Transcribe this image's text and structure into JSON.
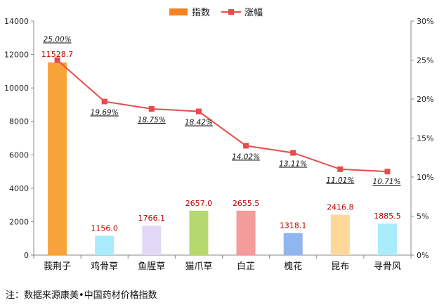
{
  "chart_data": {
    "type": "bar",
    "categories": [
      "莪荆子",
      "鸡骨草",
      "鱼腥草",
      "猫爪草",
      "白芷",
      "槐花",
      "昆布",
      "寻骨风"
    ],
    "series": [
      {
        "name": "指数",
        "type": "bar",
        "axis": "left",
        "values": [
          11528.7,
          1156.0,
          1766.1,
          2657.0,
          2655.5,
          1318.1,
          2416.8,
          1885.5
        ],
        "labels": [
          "11528.7",
          "1156.0",
          "1766.1",
          "2657.0",
          "2655.5",
          "1318.1",
          "2416.8",
          "1885.5"
        ],
        "colors": [
          "#f8a33a",
          "#a9ecfb",
          "#e2d8f5",
          "#b5d96e",
          "#f49b9b",
          "#8fb6f0",
          "#fdd89a",
          "#a9ecfb"
        ]
      },
      {
        "name": "涨幅",
        "type": "line",
        "axis": "right",
        "values": [
          25.0,
          19.69,
          18.75,
          18.42,
          14.02,
          13.11,
          11.01,
          10.71
        ],
        "labels": [
          "25.00%",
          "19.69%",
          "18.75%",
          "18.42%",
          "14.02%",
          "13.11%",
          "11.01%",
          "10.71%"
        ],
        "color": "#e84b4b"
      }
    ],
    "y_left": {
      "range": [
        0,
        14000
      ],
      "ticks": [
        "0",
        "2000",
        "4000",
        "6000",
        "8000",
        "10000",
        "12000",
        "14000"
      ]
    },
    "y_right": {
      "range": [
        0,
        30
      ],
      "ticks": [
        "0%",
        "5%",
        "10%",
        "15%",
        "20%",
        "25%",
        "30%"
      ]
    },
    "legend_position": "top-center",
    "grid": false
  },
  "legend": {
    "bar_label": "指数",
    "line_label": "涨幅"
  },
  "note": "注：数据来源康美•中国药材价格指数"
}
